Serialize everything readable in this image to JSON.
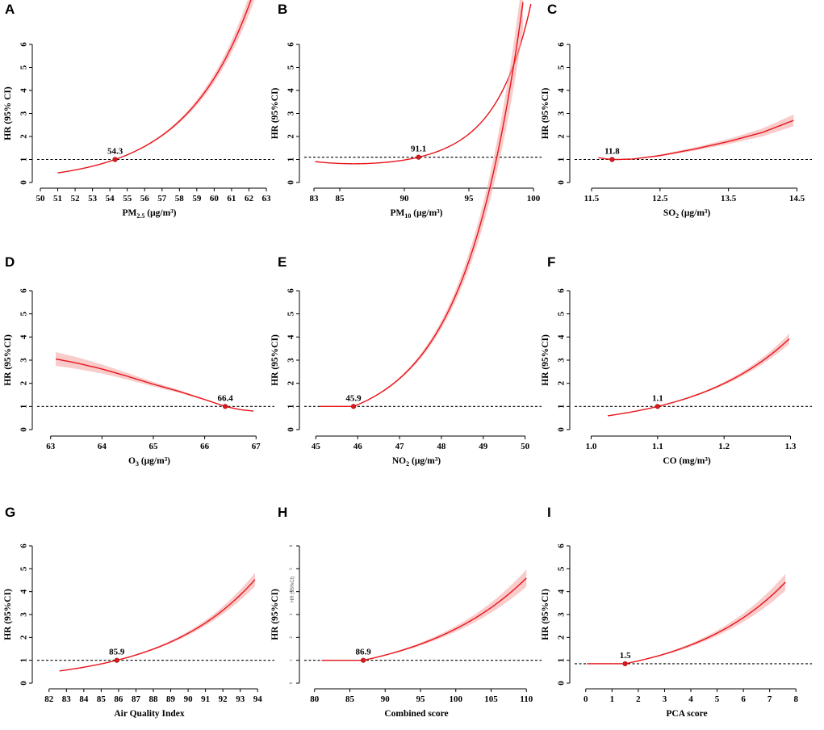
{
  "figure": {
    "colors": {
      "curve": "#e8141a",
      "band": "#f4a0a0",
      "dot": "#d7191c",
      "refline": "#000000"
    }
  },
  "chart_data": [
    {
      "panel": "A",
      "type": "line",
      "xlabel": "PM",
      "xlabel_sub": "2.5",
      "xlabel_unit": " (μg/m³)",
      "ylabel": "HR (95% CI)",
      "xlim": [
        50,
        63
      ],
      "ylim": [
        0,
        6
      ],
      "yticks": [
        0,
        1,
        2,
        3,
        4,
        5,
        6
      ],
      "xticks": [
        50,
        51,
        52,
        53,
        54,
        55,
        56,
        57,
        58,
        59,
        60,
        61,
        62,
        63
      ],
      "xtick_labels": [
        "50",
        "51",
        "52",
        "53",
        "54",
        "55",
        "56",
        "57",
        "58",
        "59",
        "60",
        "61",
        "62",
        "63"
      ],
      "reference_hr": 1.0,
      "ref_value": 54.3,
      "ref_label": "54.3",
      "x_range": [
        51,
        62.9
      ],
      "curve": {
        "type": "exp",
        "a": 0.265,
        "alpha": 0.0
      },
      "band_scale": 0.03
    },
    {
      "panel": "B",
      "type": "line",
      "xlabel": "PM",
      "xlabel_sub": "10",
      "xlabel_unit": " (μg/m³)",
      "ylabel": "HR (95%CI)",
      "xlim": [
        82.5,
        100
      ],
      "ylim": [
        0,
        6
      ],
      "yticks": [
        0,
        1,
        2,
        3,
        4,
        5,
        6
      ],
      "xticks": [
        83,
        85,
        90,
        95,
        100
      ],
      "xtick_labels": [
        "83",
        "85",
        "90",
        "95",
        "100"
      ],
      "reference_hr": 1.1,
      "ref_value": 91.1,
      "ref_label": "91.1",
      "x_range": [
        83.1,
        99.8
      ],
      "curve": {
        "type": "exp",
        "a": 0.12,
        "alpha": 0.012
      },
      "band_scale": 0.01
    },
    {
      "panel": "C",
      "type": "line",
      "xlabel": "SO",
      "xlabel_sub": "2",
      "xlabel_unit": " (μg/m³)",
      "ylabel": "HR (95%CI)",
      "xlim": [
        11.3,
        14.6
      ],
      "ylim": [
        0,
        6
      ],
      "yticks": [
        0,
        1,
        2,
        3,
        4,
        5,
        6
      ],
      "xticks": [
        11.5,
        12.5,
        13.5,
        14.5
      ],
      "xtick_labels": [
        "11.5",
        "12.5",
        "13.5",
        "14.5"
      ],
      "reference_hr": 1.0,
      "ref_value": 11.8,
      "ref_label": "11.8",
      "x_range": [
        11.6,
        14.45
      ],
      "curve": {
        "type": "dip",
        "points": [
          [
            11.6,
            1.08
          ],
          [
            11.7,
            1.03
          ],
          [
            11.8,
            1.0
          ],
          [
            11.9,
            1.0
          ],
          [
            12.1,
            1.02
          ],
          [
            12.5,
            1.17
          ],
          [
            13.0,
            1.45
          ],
          [
            13.5,
            1.78
          ],
          [
            14.0,
            2.18
          ],
          [
            14.45,
            2.7
          ]
        ]
      },
      "band_scale": 0.04
    },
    {
      "panel": "D",
      "type": "line",
      "xlabel": "O",
      "xlabel_sub": "3",
      "xlabel_unit": " (μg/m³)",
      "ylabel": "HR (95%CI)",
      "xlim": [
        62.8,
        67.2
      ],
      "ylim": [
        0,
        6
      ],
      "yticks": [
        0,
        1,
        2,
        3,
        4,
        5,
        6
      ],
      "xticks": [
        63,
        64,
        65,
        66,
        67
      ],
      "xtick_labels": [
        "63",
        "64",
        "65",
        "66",
        "67"
      ],
      "reference_hr": 1.0,
      "ref_value": 66.4,
      "ref_label": "66.4",
      "x_range": [
        63.1,
        66.95
      ],
      "curve": {
        "type": "points",
        "points": [
          [
            63.1,
            3.05
          ],
          [
            63.5,
            2.88
          ],
          [
            64.0,
            2.62
          ],
          [
            64.5,
            2.3
          ],
          [
            65.0,
            1.96
          ],
          [
            65.5,
            1.65
          ],
          [
            66.0,
            1.3
          ],
          [
            66.4,
            1.0
          ],
          [
            66.7,
            0.86
          ],
          [
            66.95,
            0.8
          ]
        ]
      },
      "band_scale": 0.045
    },
    {
      "panel": "E",
      "type": "line",
      "xlabel": "NO",
      "xlabel_sub": "2",
      "xlabel_unit": " (μg/m³)",
      "ylabel": "HR (95%CI)",
      "xlim": [
        44.8,
        50.2
      ],
      "ylim": [
        0,
        6
      ],
      "yticks": [
        0,
        1,
        2,
        3,
        4,
        5,
        6
      ],
      "xticks": [
        45,
        46,
        47,
        48,
        49,
        50
      ],
      "xtick_labels": [
        "45",
        "46",
        "47",
        "48",
        "49",
        "50"
      ],
      "reference_hr": 1.0,
      "ref_value": 45.9,
      "ref_label": "45.9",
      "x_range": [
        45.1,
        49.95
      ],
      "curve": {
        "type": "exp",
        "a": 0.72,
        "alpha": 0.0,
        "flat_before": 45.9
      },
      "band_scale": 0.03
    },
    {
      "panel": "F",
      "type": "line",
      "xlabel": "CO (mg/m³)",
      "xlabel_sub": "",
      "xlabel_unit": "",
      "ylabel": "HR (95%CI)",
      "xlim": [
        0.98,
        1.32
      ],
      "ylim": [
        0,
        6
      ],
      "yticks": [
        0,
        1,
        2,
        3,
        4,
        5,
        6
      ],
      "xticks": [
        1.0,
        1.1,
        1.2,
        1.3
      ],
      "xtick_labels": [
        "1.0",
        "1.1",
        "1.2",
        "1.3"
      ],
      "reference_hr": 1.0,
      "ref_value": 1.1,
      "ref_label": "1.1",
      "x_range": [
        1.025,
        1.298
      ],
      "curve": {
        "type": "exp",
        "a": 6.9,
        "alpha": 0.0
      },
      "band_scale": 0.03
    },
    {
      "panel": "G",
      "type": "line",
      "xlabel": "Air Quality Index",
      "xlabel_sub": "",
      "xlabel_unit": "",
      "ylabel": "HR (95%CI)",
      "xlim": [
        81.5,
        94.5
      ],
      "ylim": [
        0,
        6
      ],
      "yticks": [
        0,
        1,
        2,
        3,
        4,
        5,
        6
      ],
      "xticks": [
        82,
        83,
        84,
        85,
        86,
        87,
        88,
        89,
        90,
        91,
        92,
        93,
        94
      ],
      "xtick_labels": [
        "82",
        "83",
        "84",
        "85",
        "86",
        "87",
        "88",
        "89",
        "90",
        "91",
        "92",
        "93",
        "94"
      ],
      "reference_hr": 1.0,
      "ref_value": 85.9,
      "ref_label": "85.9",
      "x_range": [
        82.6,
        93.85
      ],
      "curve": {
        "type": "exp",
        "a": 0.19,
        "alpha": 0.0
      },
      "band_scale": 0.035
    },
    {
      "panel": "H",
      "type": "line",
      "xlabel": "Combined score",
      "xlabel_sub": "",
      "xlabel_unit": "",
      "ylabel": "HR (95%CI)",
      "ylabel_small": "HR (95%CI)",
      "xlim": [
        79,
        111
      ],
      "ylim": [
        0,
        6
      ],
      "yticks": [
        0,
        1,
        2,
        3,
        4,
        5,
        6
      ],
      "xticks": [
        80,
        85,
        90,
        95,
        100,
        105,
        110
      ],
      "xtick_labels": [
        "80",
        "85",
        "90",
        "95",
        "100",
        "105",
        "110"
      ],
      "reference_hr": 1.0,
      "ref_value": 86.9,
      "ref_label": "86.9",
      "x_range": [
        81,
        110
      ],
      "curve": {
        "type": "exp",
        "a": 0.066,
        "alpha": 0.0,
        "flat_before": 86.9
      },
      "band_scale": 0.04
    },
    {
      "panel": "I",
      "type": "line",
      "xlabel": "PCA score",
      "xlabel_sub": "",
      "xlabel_unit": "",
      "ylabel": "HR (95%CI)",
      "xlim": [
        -0.3,
        8.3
      ],
      "ylim": [
        0,
        6
      ],
      "yticks": [
        0,
        1,
        2,
        3,
        4,
        5,
        6
      ],
      "xticks": [
        0,
        1,
        2,
        3,
        4,
        5,
        6,
        7,
        8
      ],
      "xtick_labels": [
        "0",
        "1",
        "2",
        "3",
        "4",
        "5",
        "6",
        "7",
        "8"
      ],
      "reference_hr": 0.85,
      "ref_value": 1.5,
      "ref_label": "1.5",
      "x_range": [
        0.05,
        7.6
      ],
      "curve": {
        "type": "exp",
        "a": 0.27,
        "alpha": 0.0,
        "flat_before": 1.5
      },
      "band_scale": 0.04
    }
  ]
}
